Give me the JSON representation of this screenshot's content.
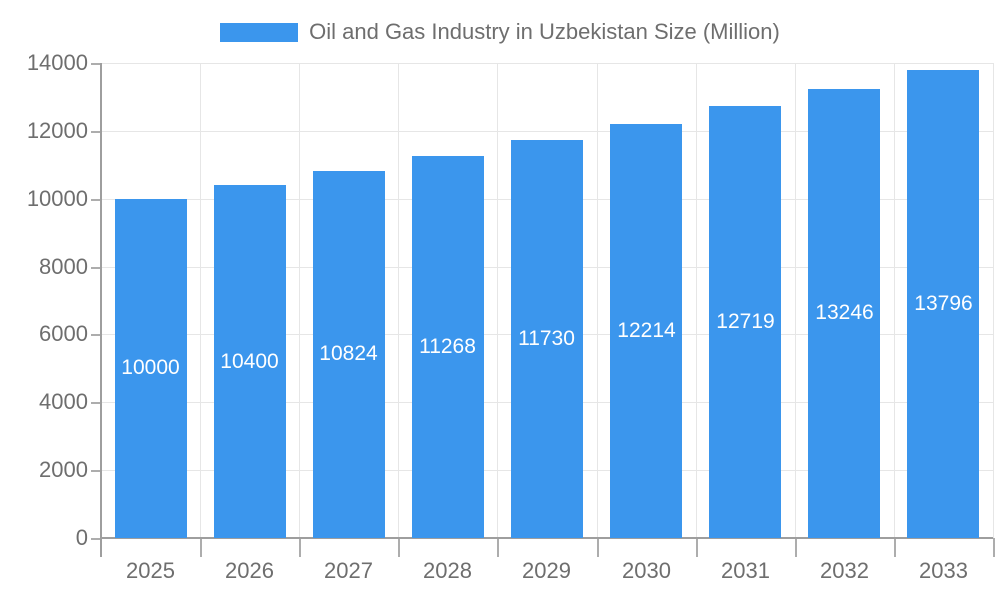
{
  "legend": {
    "label": "Oil and Gas Industry in Uzbekistan Size (Million)",
    "swatch_color": "#3B96ED",
    "position": "top-center"
  },
  "chart_data": {
    "type": "bar",
    "title": "Oil and Gas Industry in Uzbekistan Size (Million)",
    "categories": [
      "2025",
      "2026",
      "2027",
      "2028",
      "2029",
      "2030",
      "2031",
      "2032",
      "2033"
    ],
    "values": [
      10000,
      10400,
      10824,
      11268,
      11730,
      12214,
      12719,
      13246,
      13796
    ],
    "xlabel": "",
    "ylabel": "",
    "ylim": [
      0,
      14000
    ],
    "yticks": [
      0,
      2000,
      4000,
      6000,
      8000,
      10000,
      12000,
      14000
    ],
    "grid": true,
    "legend_position": "top",
    "value_labels_shown": true,
    "value_label_position": "middle-of-bar"
  },
  "colors": {
    "background": "#FFFFFF",
    "bar": "#3B96ED",
    "gridline": "#E6E6E6",
    "axis": "#9E9E9E",
    "tick": "#ADADAD",
    "label_text": "#6E6E6E",
    "value_label_text": "#FFFFFF"
  }
}
